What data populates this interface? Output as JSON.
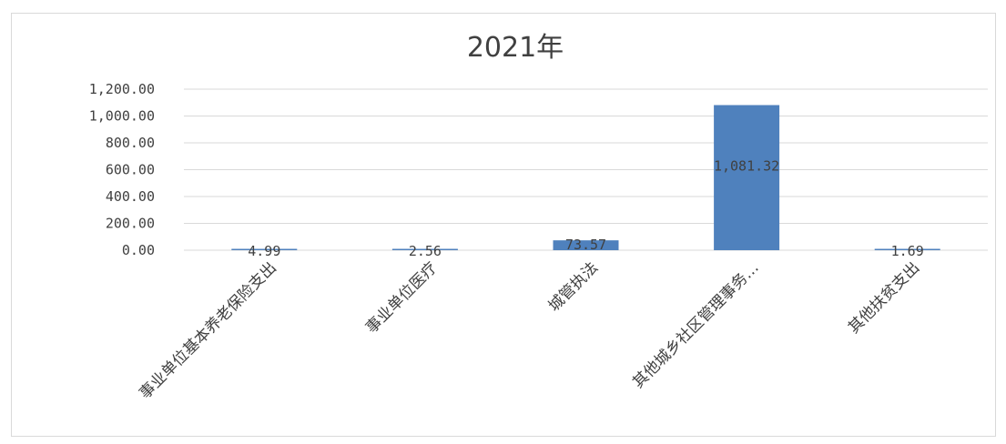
{
  "chart_data": {
    "type": "bar",
    "title": "2021年",
    "categories": [
      "事业单位基本养老保险支出",
      "事业单位医疗",
      "城管执法",
      "其他城乡社区管理事务…",
      "其他扶贫支出"
    ],
    "values": [
      4.99,
      2.56,
      73.57,
      1081.32,
      1.69
    ],
    "value_labels": [
      "4.99",
      "2.56",
      "73.57",
      "1,081.32",
      "1.69"
    ],
    "ylim": [
      0,
      1200
    ],
    "yticks": [
      0,
      200,
      400,
      600,
      800,
      1000,
      1200
    ],
    "ytick_labels": [
      "0.00",
      "200.00",
      "400.00",
      "600.00",
      "800.00",
      "1,000.00",
      "1,200.00"
    ],
    "xlabel": "",
    "ylabel": "",
    "grid": true,
    "bar_color": "#4f81bd",
    "grid_color": "#d9d9d9"
  }
}
